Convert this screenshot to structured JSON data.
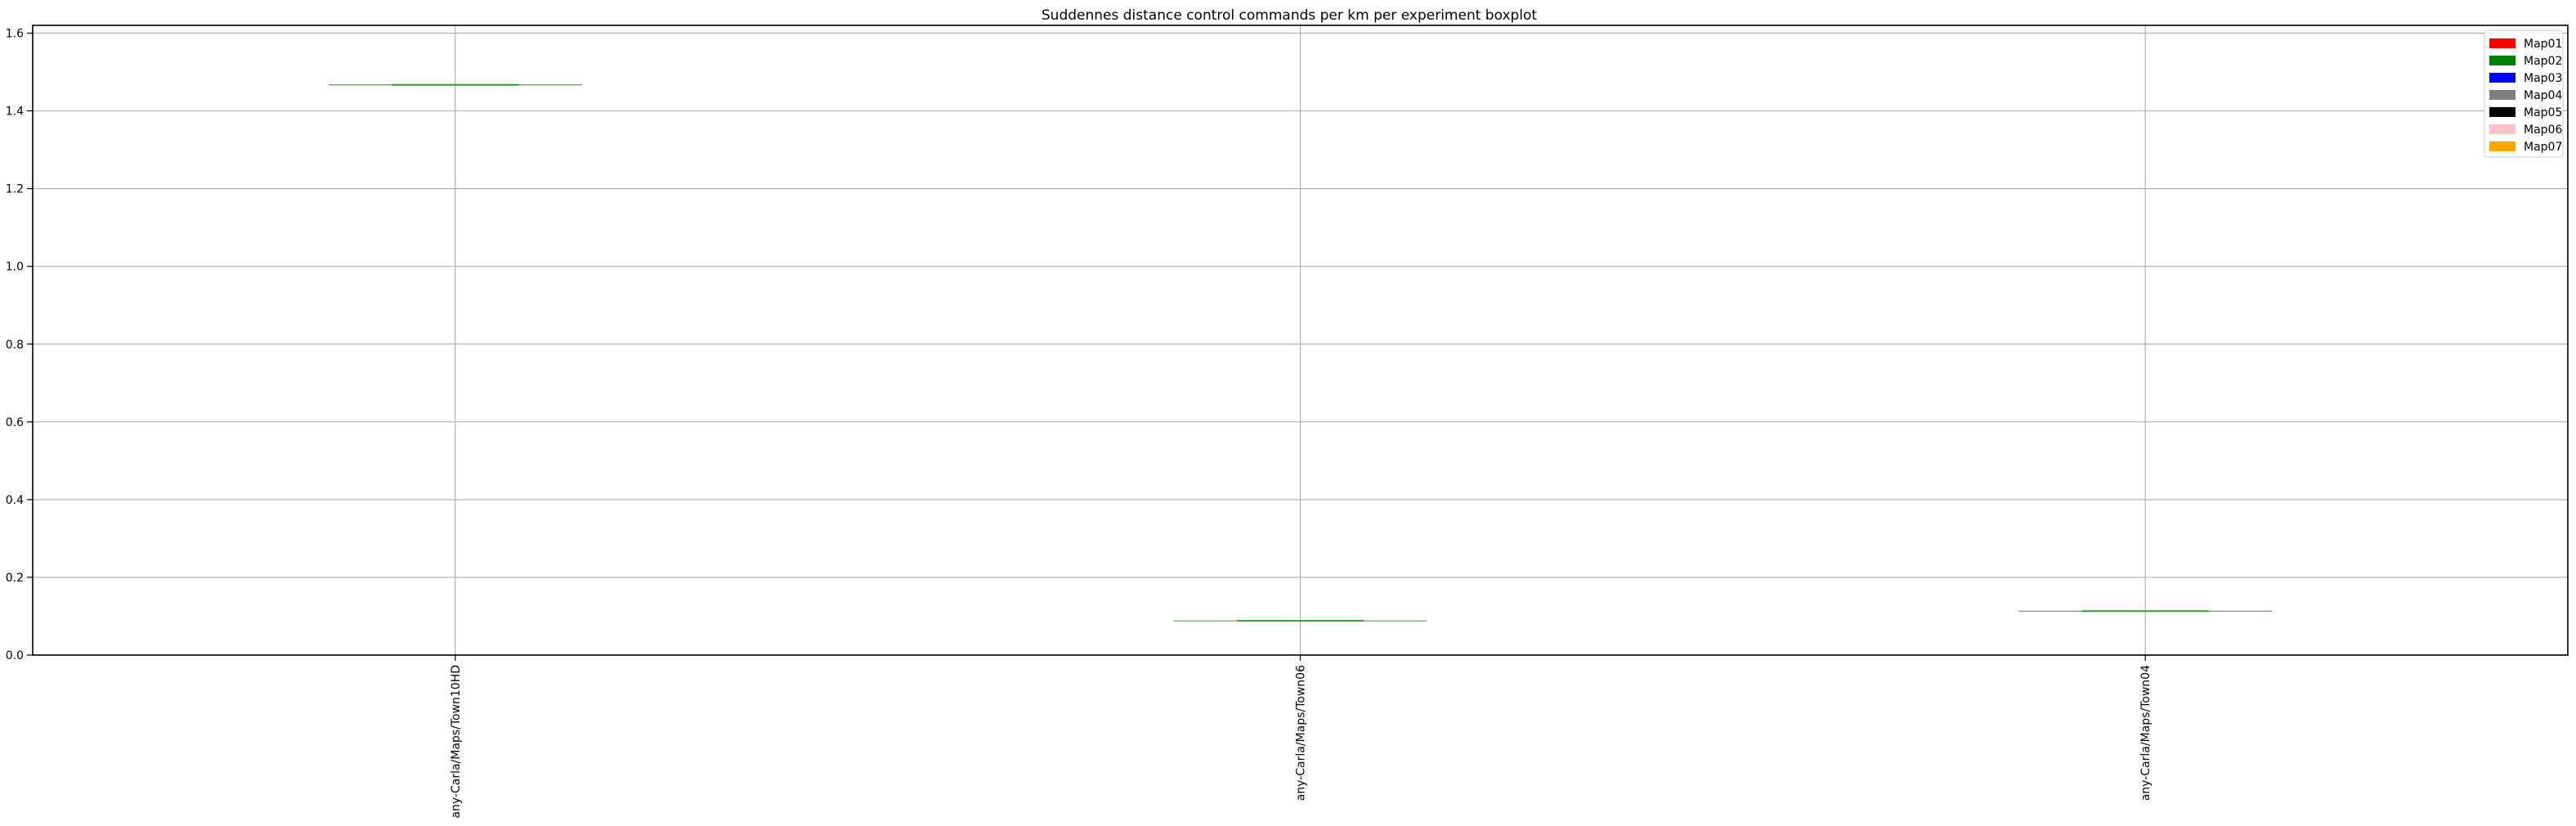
{
  "chart_data": {
    "type": "box",
    "title": "Suddennes distance control commands per km per experiment boxplot",
    "xlabel": "",
    "ylabel": "",
    "categories": [
      "any-Carla/Maps/Town10HD",
      "any-Carla/Maps/Town06",
      "any-Carla/Maps/Town04"
    ],
    "values": [
      1.467,
      0.088,
      0.113
    ],
    "median_color": "#2ca02c",
    "ylim": [
      0,
      1.62
    ],
    "yticks": [
      0.0,
      0.2,
      0.4,
      0.6,
      0.8,
      1.0,
      1.2,
      1.4,
      1.6
    ],
    "ytick_labels": [
      "0.0",
      "0.2",
      "0.4",
      "0.6",
      "0.8",
      "1.0",
      "1.2",
      "1.4",
      "1.6"
    ],
    "grid": true,
    "legend_position": "top-right",
    "legend": [
      {
        "name": "Map01",
        "color": "#ff0000"
      },
      {
        "name": "Map02",
        "color": "#008000"
      },
      {
        "name": "Map03",
        "color": "#0000ff"
      },
      {
        "name": "Map04",
        "color": "#808080"
      },
      {
        "name": "Map05",
        "color": "#000000"
      },
      {
        "name": "Map06",
        "color": "#ffc0cb"
      },
      {
        "name": "Map07",
        "color": "#ffa500"
      }
    ]
  }
}
